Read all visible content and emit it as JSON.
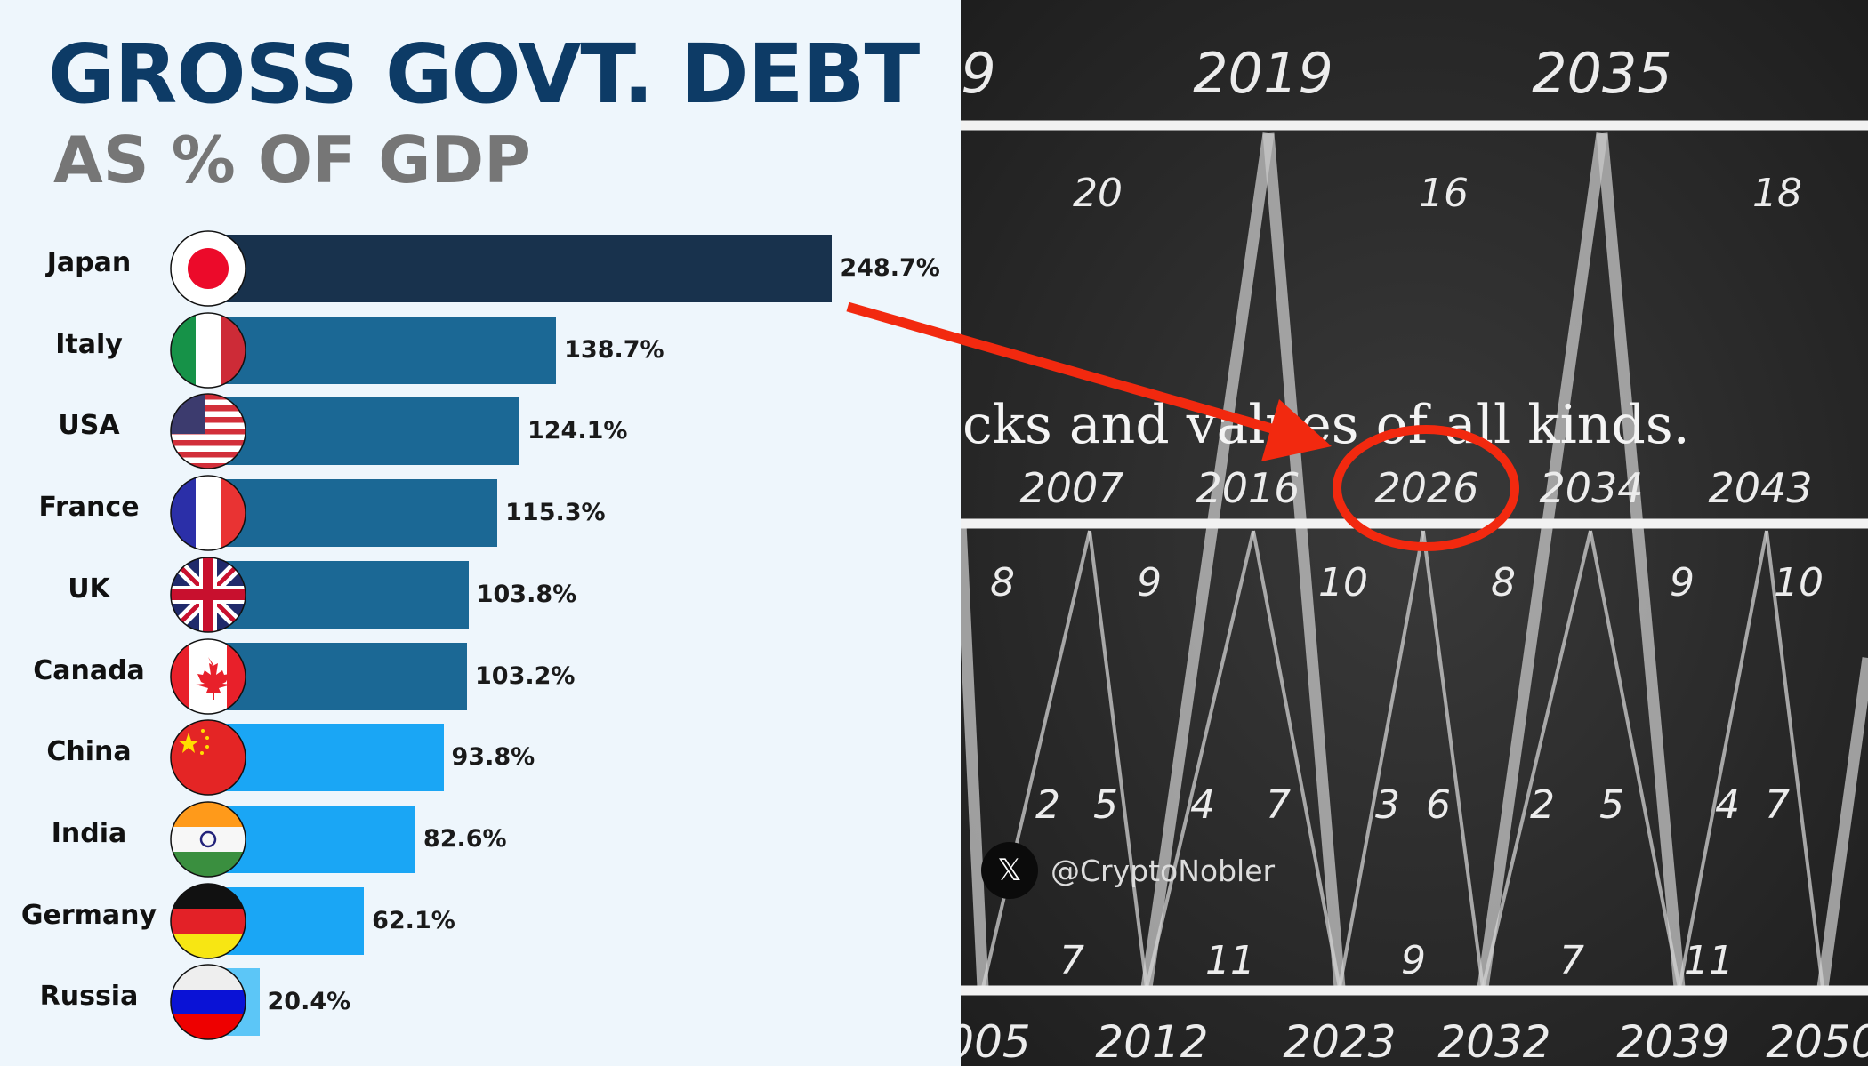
{
  "chart_data": {
    "type": "bar",
    "orientation": "horizontal",
    "title": "GROSS GOVT. DEBT",
    "subtitle": "AS % OF GDP",
    "categories": [
      "Japan",
      "Italy",
      "USA",
      "France",
      "UK",
      "Canada",
      "China",
      "India",
      "Germany",
      "Russia"
    ],
    "values": [
      248.7,
      138.7,
      124.1,
      115.3,
      103.8,
      103.2,
      93.8,
      82.6,
      62.1,
      20.4
    ],
    "value_labels": [
      "248.7%",
      "138.7%",
      "124.1%",
      "115.3%",
      "103.8%",
      "103.2%",
      "93.8%",
      "82.6%",
      "62.1%",
      "20.4%"
    ],
    "flags": [
      "japan-flag",
      "italy-flag",
      "usa-flag",
      "france-flag",
      "uk-flag",
      "canada-flag",
      "china-flag",
      "india-flag",
      "germany-flag",
      "russia-flag"
    ],
    "bar_colors": [
      "#18324d",
      "#1b6895",
      "#1b6895",
      "#1b6895",
      "#1b6895",
      "#1b6895",
      "#1aa6f5",
      "#1aa6f5",
      "#1aa6f5",
      "#5cc6f7"
    ],
    "grid": false,
    "legend": "none"
  },
  "photo": {
    "top_years": [
      "9",
      "2019",
      "2035"
    ],
    "row2_numbers": [
      "20",
      "16",
      "18"
    ],
    "sentence": "cks and values of all kinds.",
    "mid_years": [
      "2007",
      "2016",
      "2026",
      "2034",
      "2043"
    ],
    "row3_numbers": [
      "8",
      "9",
      "10",
      "8",
      "9",
      "10"
    ],
    "pair_numbers": [
      "2",
      "5",
      "4",
      "7",
      "3",
      "6",
      "2",
      "5",
      "4",
      "7"
    ],
    "bottom_numbers": [
      "7",
      "11",
      "9",
      "7",
      "11"
    ],
    "bottom_years": [
      "005",
      "2012",
      "2023",
      "2032",
      "2039",
      "2050"
    ],
    "highlighted_year": "2026"
  },
  "annotation": {
    "color": "#f2290f"
  },
  "watermark": {
    "icon": "x-logo-icon",
    "handle": "@CryptoNobler"
  }
}
